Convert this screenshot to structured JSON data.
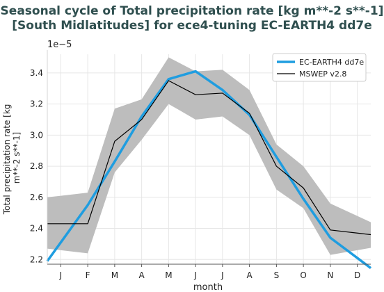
{
  "title_line1": "Seasonal cycle of Total precipitation rate [kg m**-2 s**-1]",
  "title_line2": "[South Midlatitudes] for ece4-tuning EC-EARTH4 dd7e",
  "chart_data": {
    "type": "line",
    "xlabel": "month",
    "ylabel_line1": "Total precipitation rate [kg",
    "ylabel_line2": "m**-2 s**-1]",
    "y_offset_label": "1e−5",
    "categories": [
      "J",
      "F",
      "M",
      "A",
      "M",
      "J",
      "J",
      "A",
      "S",
      "O",
      "N",
      "D"
    ],
    "y_ticks": [
      "2.2",
      "2.4",
      "2.6",
      "2.8",
      "3.0",
      "3.2",
      "3.4"
    ],
    "ylim": [
      2.17,
      3.52
    ],
    "grid": true,
    "legend_position": "top-right",
    "series": [
      {
        "name": "EC-EARTH4 dd7e",
        "color": "#1f9de0",
        "values": [
          2.31,
          2.55,
          2.83,
          3.12,
          3.36,
          3.41,
          3.29,
          3.13,
          2.86,
          2.59,
          2.34,
          2.21
        ]
      },
      {
        "name": "MSWEP v2.8",
        "color": "#000000",
        "values": [
          2.43,
          2.43,
          2.96,
          3.1,
          3.35,
          3.26,
          3.27,
          3.14,
          2.8,
          2.66,
          2.39,
          2.37
        ]
      }
    ],
    "band": {
      "color": "#bdbdbd",
      "lower": [
        2.26,
        2.24,
        2.76,
        2.97,
        3.2,
        3.1,
        3.12,
        3.0,
        2.65,
        2.53,
        2.23,
        2.26
      ],
      "upper": [
        2.61,
        2.63,
        3.17,
        3.23,
        3.5,
        3.41,
        3.42,
        3.29,
        2.94,
        2.8,
        2.56,
        2.48
      ]
    }
  }
}
